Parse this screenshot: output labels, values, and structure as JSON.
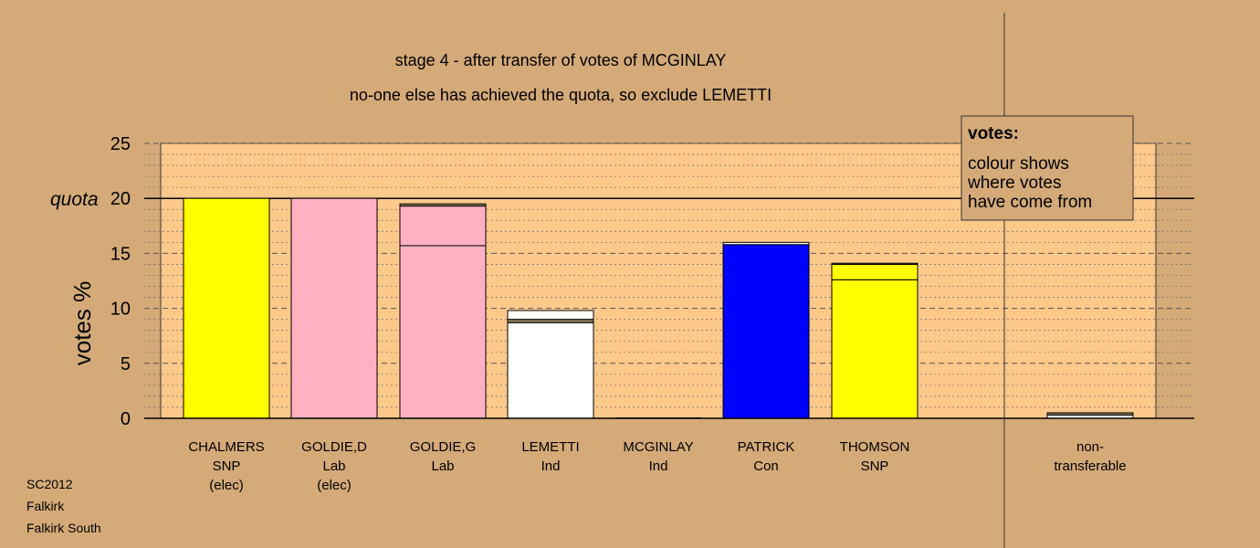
{
  "title": "stage 4 - after transfer of votes of MCGINLAY",
  "subtitle": "no-one else has achieved the quota, so exclude LEMETTI",
  "footer": [
    "SC2012",
    "Falkirk",
    "Falkirk South"
  ],
  "legend_box": {
    "heading": "votes:",
    "lines": [
      "colour shows",
      "where votes",
      "have come from"
    ]
  },
  "chart_data": {
    "type": "bar",
    "stacked": true,
    "ylabel": "votes %",
    "ylim": [
      0,
      25
    ],
    "yticks": [
      0,
      5,
      10,
      15,
      20,
      25
    ],
    "quota": {
      "value": 20,
      "label": "quota"
    },
    "grid": true,
    "colors": {
      "background": "#d4aa78",
      "plot_area": "#fdc98b",
      "SNP": "#ffff00",
      "Lab": "#ffb1c3",
      "Ind": "#ffffff",
      "Con": "#0000ff",
      "transfer": "#8b7d55"
    },
    "categories": [
      {
        "lines": [
          "CHALMERS",
          "SNP",
          "(elec)"
        ],
        "segments": [
          {
            "value": 20.0,
            "color": "#ffff00"
          }
        ]
      },
      {
        "lines": [
          "GOLDIE,D",
          "Lab",
          "(elec)"
        ],
        "segments": [
          {
            "value": 20.0,
            "color": "#ffb1c3"
          }
        ]
      },
      {
        "lines": [
          "GOLDIE,G",
          "Lab"
        ],
        "segments": [
          {
            "value": 15.7,
            "color": "#ffb1c3"
          },
          {
            "value": 3.6,
            "color": "#ffb1c3"
          },
          {
            "value": 0.2,
            "color": "#8b7d55"
          }
        ]
      },
      {
        "lines": [
          "LEMETTI",
          "Ind"
        ],
        "segments": [
          {
            "value": 8.7,
            "color": "#ffffff"
          },
          {
            "value": 0.3,
            "color": "#8b7d55"
          },
          {
            "value": 0.8,
            "color": "#ffffff"
          }
        ]
      },
      {
        "lines": [
          "MCGINLAY",
          "Ind"
        ],
        "segments": []
      },
      {
        "lines": [
          "PATRICK",
          "Con"
        ],
        "segments": [
          {
            "value": 15.8,
            "color": "#0000ff"
          },
          {
            "value": 0.2,
            "color": "#ffffff"
          }
        ]
      },
      {
        "lines": [
          "THOMSON",
          "SNP"
        ],
        "segments": [
          {
            "value": 12.6,
            "color": "#ffff00"
          },
          {
            "value": 1.4,
            "color": "#ffff00"
          },
          {
            "value": 0.1,
            "color": "#8b7d55"
          }
        ]
      }
    ],
    "nontransferable": {
      "lines": [
        "non-",
        "transferable"
      ],
      "segments": [
        {
          "value": 0.3,
          "color": "#ffffff"
        },
        {
          "value": 0.2,
          "color": "#8b7d55"
        }
      ]
    }
  }
}
